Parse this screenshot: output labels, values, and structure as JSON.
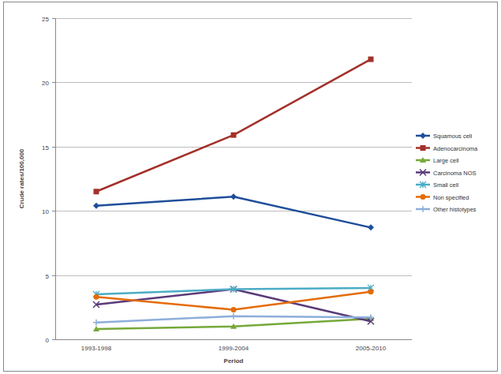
{
  "chart_data": {
    "type": "line",
    "x_label": "Period",
    "y_label": "Crude rates/100,000",
    "categories": [
      "1993-1998",
      "1999-2004",
      "2005-2010"
    ],
    "ylim": [
      0,
      25
    ],
    "yticks": [
      0,
      5,
      10,
      15,
      20,
      25
    ],
    "grid": true,
    "legend": "right",
    "series": [
      {
        "name": "Squamous cell",
        "color": "#1f4e9a",
        "marker": "diamond",
        "values": [
          10.4,
          11.1,
          8.7
        ]
      },
      {
        "name": "Adenocarcinoma",
        "color": "#a3302a",
        "marker": "square",
        "values": [
          11.5,
          15.9,
          21.8
        ]
      },
      {
        "name": "Large cell",
        "color": "#76a83a",
        "marker": "triangle",
        "values": [
          0.8,
          1.0,
          1.6
        ]
      },
      {
        "name": "Carcinoma NOS",
        "color": "#5a3a78",
        "marker": "x",
        "values": [
          2.7,
          3.9,
          1.4
        ]
      },
      {
        "name": "Small cell",
        "color": "#4bacc6",
        "marker": "star",
        "values": [
          3.5,
          3.9,
          4.0
        ]
      },
      {
        "name": "Non specified",
        "color": "#e46c0a",
        "marker": "circle",
        "values": [
          3.3,
          2.3,
          3.7
        ]
      },
      {
        "name": "Other histotypes",
        "color": "#8eaedb",
        "marker": "plus",
        "values": [
          1.3,
          1.8,
          1.7
        ]
      }
    ]
  }
}
